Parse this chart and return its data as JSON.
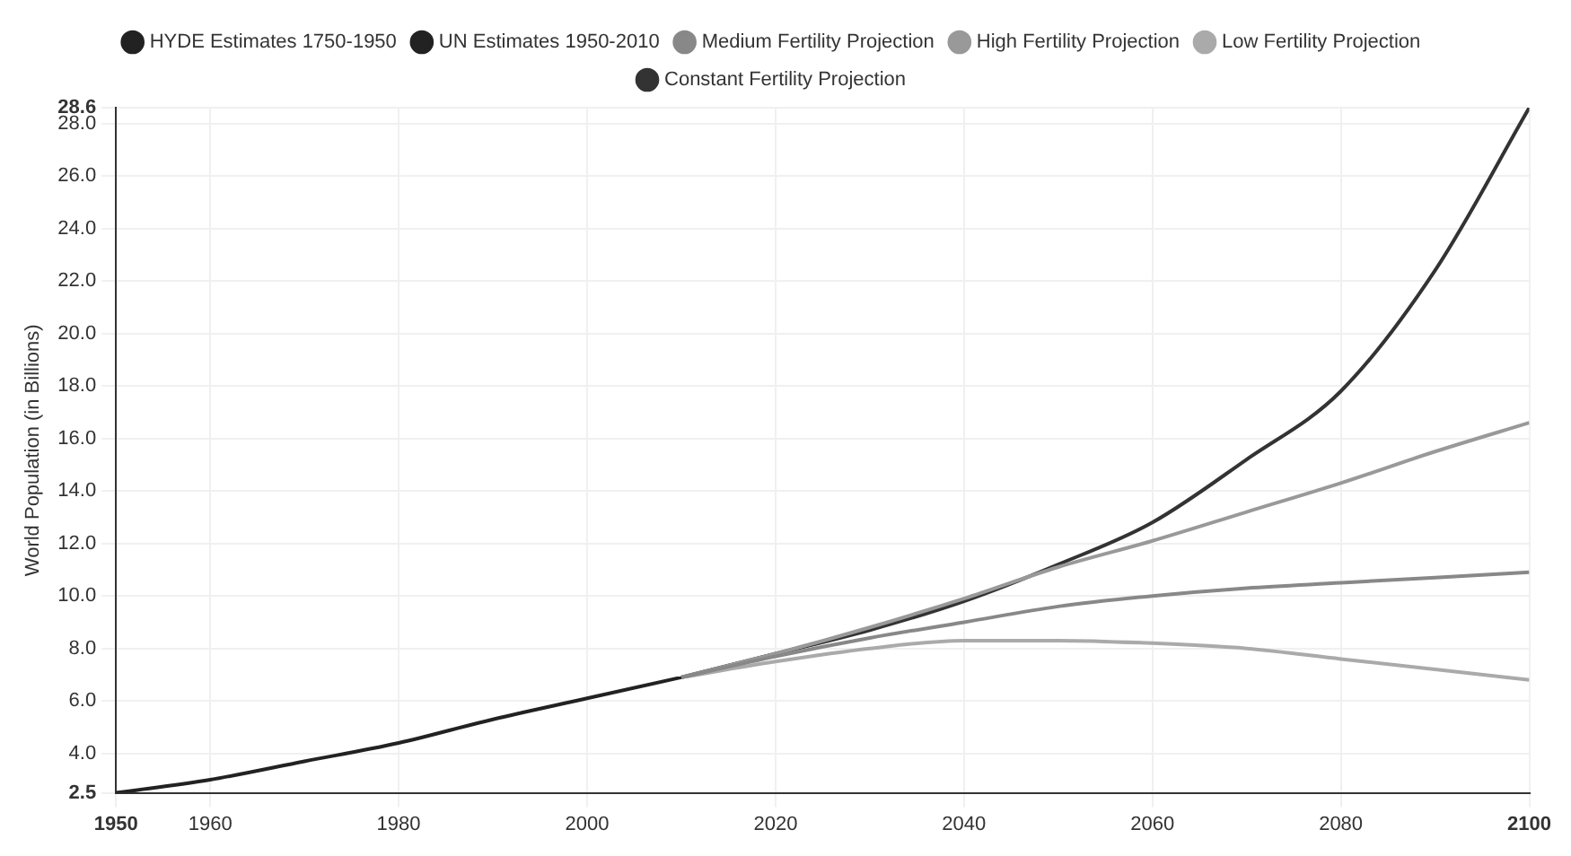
{
  "chart_data": {
    "type": "line",
    "ylabel": "World Population (in Billions)",
    "legend": "top",
    "grid": true,
    "marker": "none",
    "xlim": [
      1950,
      2100
    ],
    "xticks": [
      1950,
      1960,
      1980,
      2000,
      2020,
      2040,
      2060,
      2080,
      2100
    ],
    "ylim": [
      2.5,
      28.6
    ],
    "yticks": [
      2.5,
      {
        "value": 4,
        "label": "4.0"
      },
      {
        "value": 6,
        "label": "6.0"
      },
      {
        "value": 8,
        "label": "8.0"
      },
      {
        "value": 10,
        "label": "10.0"
      },
      {
        "value": 12,
        "label": "12.0"
      },
      {
        "value": 14,
        "label": "14.0"
      },
      {
        "value": 16,
        "label": "16.0"
      },
      {
        "value": 18,
        "label": "18.0"
      },
      {
        "value": 20,
        "label": "20.0"
      },
      {
        "value": 22,
        "label": "22.0"
      },
      {
        "value": 24,
        "label": "24.0"
      },
      {
        "value": 26,
        "label": "26.0"
      },
      {
        "value": 28,
        "label": "28.0"
      },
      28.6
    ],
    "series": [
      {
        "name": "HYDE Estimates 1750-1950",
        "color": "#222222"
      },
      {
        "name": "UN Estimates 1950-2010",
        "color": "#222222",
        "x": [
          1950,
          1960,
          1970,
          1980,
          1990,
          2000,
          2010
        ],
        "values": [
          2.5,
          3.0,
          3.7,
          4.4,
          5.3,
          6.1,
          6.9
        ]
      },
      {
        "name": "Medium Fertility Projection",
        "color": "#888888",
        "x": [
          2010,
          2020,
          2030,
          2040,
          2050,
          2060,
          2070,
          2080,
          2090,
          2100
        ],
        "values": [
          6.9,
          7.7,
          8.4,
          9.0,
          9.6,
          10.0,
          10.3,
          10.5,
          10.7,
          10.9
        ]
      },
      {
        "name": "High Fertility Projection",
        "color": "#999999",
        "x": [
          2010,
          2020,
          2030,
          2040,
          2050,
          2060,
          2070,
          2080,
          2090,
          2100
        ],
        "values": [
          6.9,
          7.8,
          8.8,
          9.9,
          11.1,
          12.1,
          13.2,
          14.3,
          15.5,
          16.6
        ]
      },
      {
        "name": "Low Fertility Projection",
        "color": "#aaaaaa",
        "x": [
          2010,
          2020,
          2030,
          2040,
          2050,
          2060,
          2070,
          2080,
          2090,
          2100
        ],
        "values": [
          6.9,
          7.5,
          8.0,
          8.3,
          8.3,
          8.2,
          8.0,
          7.6,
          7.2,
          6.8
        ]
      },
      {
        "name": "Constant Fertility Projection",
        "color": "#333333",
        "x": [
          2010,
          2020,
          2030,
          2040,
          2050,
          2060,
          2070,
          2080,
          2090,
          2100
        ],
        "values": [
          6.9,
          7.8,
          8.7,
          9.8,
          11.2,
          12.8,
          15.2,
          17.8,
          22.4,
          28.6
        ]
      }
    ]
  }
}
